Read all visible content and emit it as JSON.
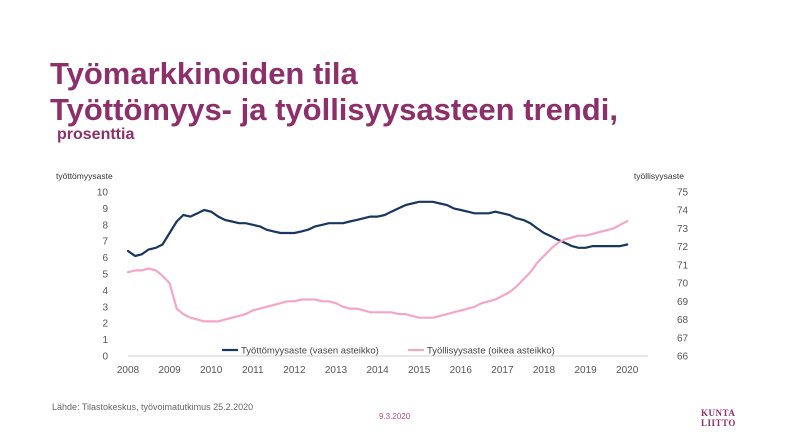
{
  "header": {
    "title_line1": "Työmarkkinoiden tila",
    "title_line2": "Työttömyys- ja työllisyysasteen trendi,",
    "subtitle": "prosenttia"
  },
  "footer": {
    "source": "Lähde: Tilastokeskus, työvoimatutkimus 25.2.2020",
    "date": "9.3.2020",
    "logo_text": "KUNTALIITTO"
  },
  "colors": {
    "title": "#8c2f6a",
    "unemployment": "#17375e",
    "employment": "#f4a6c7",
    "logo": "#8c2f6a"
  },
  "chart_data": {
    "type": "line",
    "ylabel_left": "työttömyysaste",
    "ylabel_right": "työllisyysaste",
    "ylim_left": [
      0,
      10
    ],
    "ylim_right": [
      66,
      75
    ],
    "xlim": [
      2008,
      2020.5
    ],
    "x_ticks": [
      "2008",
      "2009",
      "2010",
      "2011",
      "2012",
      "2013",
      "2014",
      "2015",
      "2016",
      "2017",
      "2018",
      "2019",
      "2020"
    ],
    "y_ticks_left": [
      "0",
      "1",
      "2",
      "3",
      "4",
      "5",
      "6",
      "7",
      "8",
      "9",
      "10"
    ],
    "y_ticks_right": [
      "66",
      "67",
      "68",
      "69",
      "70",
      "71",
      "72",
      "73",
      "74",
      "75"
    ],
    "grid": false,
    "legend_position": "bottom",
    "series": [
      {
        "name": "Työttömyysaste (vasen asteikko)",
        "axis": "left",
        "points": [
          [
            2008.0,
            6.4
          ],
          [
            2008.17,
            6.1
          ],
          [
            2008.33,
            6.2
          ],
          [
            2008.5,
            6.5
          ],
          [
            2008.67,
            6.6
          ],
          [
            2008.83,
            6.8
          ],
          [
            2009.0,
            7.5
          ],
          [
            2009.17,
            8.2
          ],
          [
            2009.33,
            8.6
          ],
          [
            2009.5,
            8.5
          ],
          [
            2009.67,
            8.7
          ],
          [
            2009.83,
            8.9
          ],
          [
            2010.0,
            8.8
          ],
          [
            2010.17,
            8.5
          ],
          [
            2010.33,
            8.3
          ],
          [
            2010.5,
            8.2
          ],
          [
            2010.67,
            8.1
          ],
          [
            2010.83,
            8.1
          ],
          [
            2011.0,
            8.0
          ],
          [
            2011.17,
            7.9
          ],
          [
            2011.33,
            7.7
          ],
          [
            2011.5,
            7.6
          ],
          [
            2011.67,
            7.5
          ],
          [
            2011.83,
            7.5
          ],
          [
            2012.0,
            7.5
          ],
          [
            2012.17,
            7.6
          ],
          [
            2012.33,
            7.7
          ],
          [
            2012.5,
            7.9
          ],
          [
            2012.67,
            8.0
          ],
          [
            2012.83,
            8.1
          ],
          [
            2013.0,
            8.1
          ],
          [
            2013.17,
            8.1
          ],
          [
            2013.33,
            8.2
          ],
          [
            2013.5,
            8.3
          ],
          [
            2013.67,
            8.4
          ],
          [
            2013.83,
            8.5
          ],
          [
            2014.0,
            8.5
          ],
          [
            2014.17,
            8.6
          ],
          [
            2014.33,
            8.8
          ],
          [
            2014.5,
            9.0
          ],
          [
            2014.67,
            9.2
          ],
          [
            2014.83,
            9.3
          ],
          [
            2015.0,
            9.4
          ],
          [
            2015.17,
            9.4
          ],
          [
            2015.33,
            9.4
          ],
          [
            2015.5,
            9.3
          ],
          [
            2015.67,
            9.2
          ],
          [
            2015.83,
            9.0
          ],
          [
            2016.0,
            8.9
          ],
          [
            2016.17,
            8.8
          ],
          [
            2016.33,
            8.7
          ],
          [
            2016.5,
            8.7
          ],
          [
            2016.67,
            8.7
          ],
          [
            2016.83,
            8.8
          ],
          [
            2017.0,
            8.7
          ],
          [
            2017.17,
            8.6
          ],
          [
            2017.33,
            8.4
          ],
          [
            2017.5,
            8.3
          ],
          [
            2017.67,
            8.1
          ],
          [
            2017.83,
            7.8
          ],
          [
            2018.0,
            7.5
          ],
          [
            2018.17,
            7.3
          ],
          [
            2018.33,
            7.1
          ],
          [
            2018.5,
            6.9
          ],
          [
            2018.67,
            6.7
          ],
          [
            2018.83,
            6.6
          ],
          [
            2019.0,
            6.6
          ],
          [
            2019.17,
            6.7
          ],
          [
            2019.33,
            6.7
          ],
          [
            2019.5,
            6.7
          ],
          [
            2019.67,
            6.7
          ],
          [
            2019.83,
            6.7
          ],
          [
            2020.0,
            6.8
          ]
        ]
      },
      {
        "name": "Työllisyysaste (oikea asteikko)",
        "axis": "right",
        "points": [
          [
            2008.0,
            70.6
          ],
          [
            2008.17,
            70.7
          ],
          [
            2008.33,
            70.7
          ],
          [
            2008.5,
            70.8
          ],
          [
            2008.67,
            70.7
          ],
          [
            2008.83,
            70.4
          ],
          [
            2009.0,
            70.0
          ],
          [
            2009.17,
            68.6
          ],
          [
            2009.33,
            68.3
          ],
          [
            2009.5,
            68.1
          ],
          [
            2009.67,
            68.0
          ],
          [
            2009.83,
            67.9
          ],
          [
            2010.0,
            67.9
          ],
          [
            2010.17,
            67.9
          ],
          [
            2010.33,
            68.0
          ],
          [
            2010.5,
            68.1
          ],
          [
            2010.67,
            68.2
          ],
          [
            2010.83,
            68.3
          ],
          [
            2011.0,
            68.5
          ],
          [
            2011.17,
            68.6
          ],
          [
            2011.33,
            68.7
          ],
          [
            2011.5,
            68.8
          ],
          [
            2011.67,
            68.9
          ],
          [
            2011.83,
            69.0
          ],
          [
            2012.0,
            69.0
          ],
          [
            2012.17,
            69.1
          ],
          [
            2012.33,
            69.1
          ],
          [
            2012.5,
            69.1
          ],
          [
            2012.67,
            69.0
          ],
          [
            2012.83,
            69.0
          ],
          [
            2013.0,
            68.9
          ],
          [
            2013.17,
            68.7
          ],
          [
            2013.33,
            68.6
          ],
          [
            2013.5,
            68.6
          ],
          [
            2013.67,
            68.5
          ],
          [
            2013.83,
            68.4
          ],
          [
            2014.0,
            68.4
          ],
          [
            2014.17,
            68.4
          ],
          [
            2014.33,
            68.4
          ],
          [
            2014.5,
            68.3
          ],
          [
            2014.67,
            68.3
          ],
          [
            2014.83,
            68.2
          ],
          [
            2015.0,
            68.1
          ],
          [
            2015.17,
            68.1
          ],
          [
            2015.33,
            68.1
          ],
          [
            2015.5,
            68.2
          ],
          [
            2015.67,
            68.3
          ],
          [
            2015.83,
            68.4
          ],
          [
            2016.0,
            68.5
          ],
          [
            2016.17,
            68.6
          ],
          [
            2016.33,
            68.7
          ],
          [
            2016.5,
            68.9
          ],
          [
            2016.67,
            69.0
          ],
          [
            2016.83,
            69.1
          ],
          [
            2017.0,
            69.3
          ],
          [
            2017.17,
            69.5
          ],
          [
            2017.33,
            69.8
          ],
          [
            2017.5,
            70.2
          ],
          [
            2017.67,
            70.6
          ],
          [
            2017.83,
            71.1
          ],
          [
            2018.0,
            71.5
          ],
          [
            2018.17,
            71.9
          ],
          [
            2018.33,
            72.2
          ],
          [
            2018.5,
            72.4
          ],
          [
            2018.67,
            72.5
          ],
          [
            2018.83,
            72.6
          ],
          [
            2019.0,
            72.6
          ],
          [
            2019.17,
            72.7
          ],
          [
            2019.33,
            72.8
          ],
          [
            2019.5,
            72.9
          ],
          [
            2019.67,
            73.0
          ],
          [
            2019.83,
            73.2
          ],
          [
            2020.0,
            73.4
          ]
        ]
      }
    ]
  }
}
